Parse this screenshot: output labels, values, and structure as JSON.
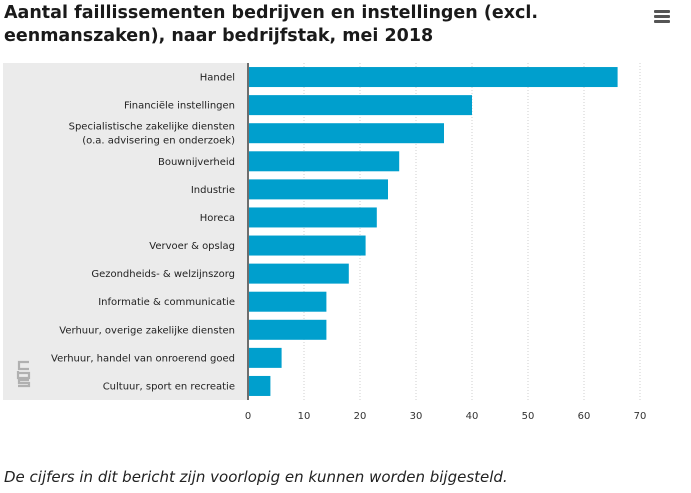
{
  "chart_data": {
    "type": "bar",
    "orientation": "horizontal",
    "title": "Aantal faillissementen bedrijven en instellingen (excl. eenmanszaken), naar bedrijfstak, mei 2018",
    "categories": [
      [
        "Handel"
      ],
      [
        "Financiële instellingen"
      ],
      [
        "Specialistische zakelijke diensten",
        "(o.a. advisering en onderzoek)"
      ],
      [
        "Bouwnijverheid"
      ],
      [
        "Industrie"
      ],
      [
        "Horeca"
      ],
      [
        "Vervoer & opslag"
      ],
      [
        "Gezondheids- & welzijnszorg"
      ],
      [
        "Informatie & communicatie"
      ],
      [
        "Verhuur, overige zakelijke diensten"
      ],
      [
        "Verhuur, handel van onroerend goed"
      ],
      [
        "Cultuur, sport en recreatie"
      ]
    ],
    "values": [
      66,
      40,
      35,
      27,
      25,
      23,
      21,
      18,
      14,
      14,
      6,
      4
    ],
    "xlim": [
      0,
      70
    ],
    "xticks": [
      0,
      10,
      20,
      30,
      40,
      50,
      60,
      70
    ],
    "grid": true,
    "bar_color": "#009fcd",
    "xlabel": "",
    "ylabel": ""
  },
  "footnote": "De cijfers in dit bericht zijn voorlopig en kunnen worden bijgesteld.",
  "icons": {
    "menu": "hamburger-menu-icon",
    "logo": "cbs-logo-icon"
  }
}
